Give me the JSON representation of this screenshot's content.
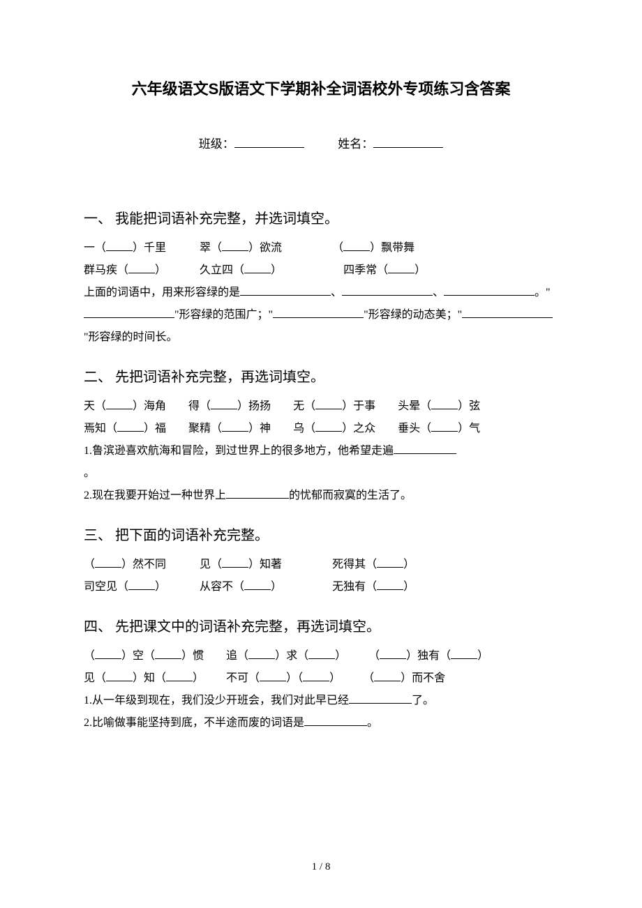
{
  "doc_title": "六年级语文S版语文下学期补全词语校外专项练习含答案",
  "form": {
    "class_label": "班级：",
    "name_label": "姓名："
  },
  "section1": {
    "heading": "一、 我能把词语补充完整，并选词填空。",
    "row1_a": "一（",
    "row1_b": "）千里",
    "row1_c": "翠（",
    "row1_d": "）欲流",
    "row1_e": "（",
    "row1_f": "）飘带舞",
    "row2_a": "群马疾（",
    "row2_b": "）",
    "row2_c": "久立四（",
    "row2_d": "）",
    "row2_e": "四季常（",
    "row2_f": "）",
    "para_a": "上面的词语中，用来形容绿的是",
    "para_b": "、",
    "para_c": "、",
    "para_d": "。\"",
    "para_e": "\"形容绿的范围广；\"",
    "para_f": "\"形容绿的动态美；\"",
    "para_g": "\"形容绿的时间长。"
  },
  "section2": {
    "heading": "二、 先把词语补充完整，再选词填空。",
    "row1_a": "天（",
    "row1_b": "）海角",
    "row1_c": "得（",
    "row1_d": "）扬扬",
    "row1_e": "无（",
    "row1_f": "）于事",
    "row1_g": "头晕（",
    "row1_h": "）弦",
    "row2_a": "焉知（",
    "row2_b": "）福",
    "row2_c": "聚精（",
    "row2_d": "）神",
    "row2_e": "乌（",
    "row2_f": "）之众",
    "row2_g": "垂头（",
    "row2_h": "）气",
    "q1_a": "1.鲁滨逊喜欢航海和冒险，到过世界上的很多地方，他希望走遍",
    "q1_b": "。",
    "q2_a": "2.现在我要开始过一种世界上",
    "q2_b": "的忧郁而寂寞的生活了。"
  },
  "section3": {
    "heading": "三、 把下面的词语补充完整。",
    "row1_a": "（",
    "row1_b": "）然不同",
    "row1_c": "见（",
    "row1_d": "）知著",
    "row1_e": "死得其（",
    "row1_f": "）",
    "row2_a": "司空见（",
    "row2_b": "）",
    "row2_c": "从容不（",
    "row2_d": "）",
    "row2_e": "无独有（",
    "row2_f": "）"
  },
  "section4": {
    "heading": "四、 先把课文中的词语补充完整，再选词填空。",
    "row1_a": "（",
    "row1_b": "）空（",
    "row1_c": "）惯",
    "row1_d": "追（",
    "row1_e": "）求（",
    "row1_f": "）",
    "row1_g": "（",
    "row1_h": "）独有（",
    "row1_i": "）",
    "row2_a": "见（",
    "row2_b": "）知（",
    "row2_c": "）",
    "row2_d": "不可（",
    "row2_e": "）（",
    "row2_f": "）",
    "row2_g": "（",
    "row2_h": "）而不舍",
    "q1_a": "1.从一年级到现在，我们没少开班会，我们对此早已经",
    "q1_b": "了。",
    "q2_a": "2.比喻做事能坚持到底，不半途而废的词语是",
    "q2_b": "。"
  },
  "page_number": "1 / 8",
  "style": {
    "background_color": "#ffffff",
    "text_color": "#000000",
    "title_fontsize": 22,
    "heading_fontsize": 20,
    "body_fontsize": 16,
    "line_height": 2.0
  }
}
